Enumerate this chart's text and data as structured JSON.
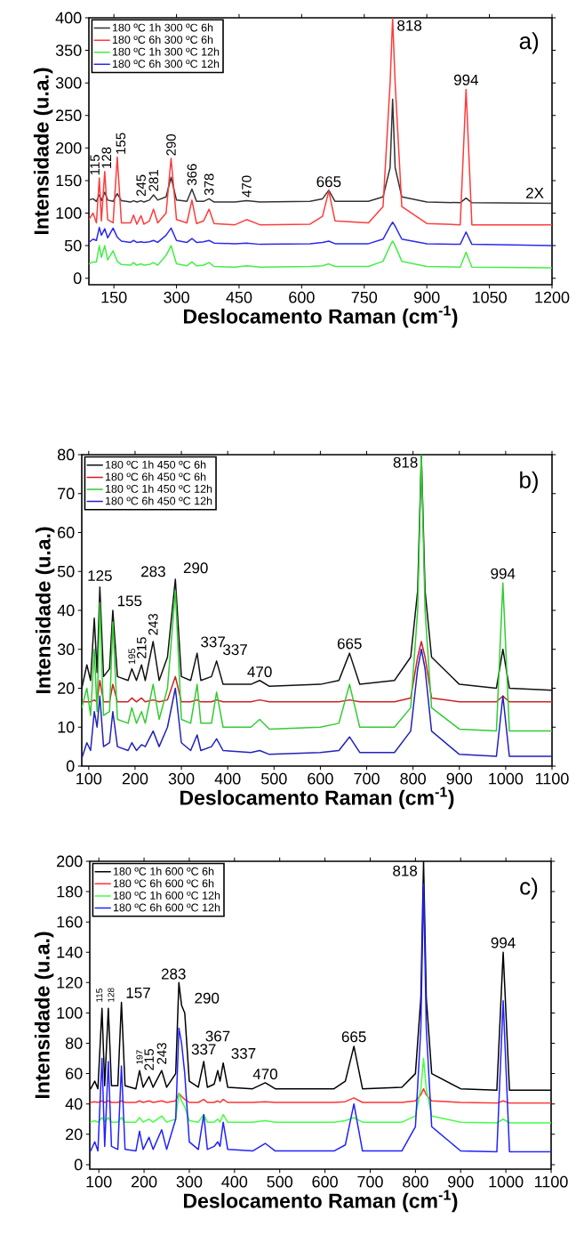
{
  "chart_data": [
    {
      "type": "line",
      "xlabel": "Deslocamento Raman (cm$^{-1}$)",
      "ylabel": "Intensidade (u.a.)",
      "xlim": [
        90,
        1200
      ],
      "ylim": [
        -10,
        400
      ],
      "xticks": [
        150,
        300,
        450,
        600,
        750,
        900,
        1050,
        1200
      ],
      "yticks": [
        0,
        50,
        100,
        150,
        200,
        250,
        300,
        350,
        400
      ],
      "legend": "top left",
      "x": [
        90,
        100,
        108,
        115,
        120,
        128,
        135,
        148,
        158,
        168,
        190,
        197,
        205,
        215,
        222,
        235,
        245,
        255,
        275,
        287,
        300,
        325,
        337,
        348,
        365,
        378,
        390,
        440,
        468,
        500,
        620,
        650,
        665,
        680,
        760,
        795,
        812,
        818,
        824,
        840,
        900,
        980,
        994,
        1008,
        1200
      ],
      "series": [
        {
          "name": "180 ºC 1h 300 ºC 6h",
          "color": "#333333",
          "values": [
            120,
            122,
            118,
            128,
            119,
            132,
            120,
            118,
            130,
            119,
            117,
            119,
            117,
            119,
            117,
            120,
            128,
            120,
            125,
            155,
            120,
            118,
            137,
            118,
            118,
            122,
            117,
            117,
            119,
            117,
            118,
            122,
            135,
            118,
            118,
            125,
            170,
            275,
            170,
            125,
            117,
            116,
            123,
            116,
            115
          ]
        },
        {
          "name": "180 ºC 6h 300 ºC 6h",
          "color": "#ff3b3b",
          "values": [
            90,
            100,
            85,
            154,
            88,
            164,
            90,
            85,
            186,
            85,
            85,
            97,
            83,
            96,
            83,
            88,
            106,
            85,
            100,
            184,
            90,
            85,
            120,
            84,
            88,
            106,
            84,
            82,
            90,
            82,
            83,
            95,
            134,
            88,
            85,
            110,
            300,
            400,
            300,
            110,
            84,
            82,
            290,
            82,
            82
          ]
        },
        {
          "name": "180 ºC 1h 300 ºC 12h",
          "color": "#44ee44",
          "values": [
            22,
            25,
            25,
            50,
            32,
            50,
            28,
            42,
            26,
            21,
            20,
            24,
            20,
            22,
            20,
            21,
            24,
            20,
            35,
            50,
            22,
            19,
            25,
            19,
            20,
            24,
            18,
            17,
            19,
            17,
            18,
            19,
            22,
            18,
            18,
            26,
            50,
            57,
            50,
            26,
            18,
            17,
            40,
            17,
            16
          ]
        },
        {
          "name": "180 ºC 6h 300 ºC 12h",
          "color": "#2a2aee",
          "values": [
            55,
            60,
            58,
            78,
            66,
            76,
            62,
            77,
            63,
            57,
            55,
            58,
            55,
            56,
            55,
            56,
            58,
            55,
            66,
            77,
            58,
            55,
            61,
            55,
            56,
            58,
            54,
            53,
            54,
            52,
            53,
            55,
            57,
            53,
            53,
            60,
            80,
            86,
            80,
            60,
            53,
            52,
            71,
            52,
            50
          ]
        }
      ],
      "annotations": [
        "a)",
        "2X",
        {
          "text": "115",
          "x": 115,
          "y": 154
        },
        {
          "text": "128",
          "x": 128,
          "y": 164
        },
        {
          "text": "155",
          "x": 158,
          "y": 186
        },
        {
          "text": "245",
          "x": 215,
          "y": 119
        },
        {
          "text": "281",
          "x": 245,
          "y": 128
        },
        {
          "text": "290",
          "x": 287,
          "y": 184
        },
        {
          "text": "366",
          "x": 337,
          "y": 137
        },
        {
          "text": "378",
          "x": 378,
          "y": 122
        },
        {
          "text": "470",
          "x": 468,
          "y": 119
        },
        {
          "text": "665",
          "x": 665,
          "y": 135
        },
        {
          "text": "818",
          "x": 818,
          "y": 400
        },
        {
          "text": "994",
          "x": 994,
          "y": 290
        }
      ]
    },
    {
      "type": "line",
      "xlabel": "Deslocamento Raman (cm$^{-1}$)",
      "ylabel": "Intensidade (u.a.)",
      "xlim": [
        85,
        1100
      ],
      "ylim": [
        0,
        80
      ],
      "xticks": [
        100,
        200,
        300,
        400,
        500,
        600,
        700,
        800,
        900,
        1000,
        1100
      ],
      "yticks": [
        0,
        10,
        20,
        30,
        40,
        50,
        60,
        70,
        80
      ],
      "legend": "top left",
      "x": [
        85,
        96,
        104,
        112,
        118,
        124,
        132,
        145,
        152,
        162,
        185,
        193,
        203,
        214,
        222,
        239,
        252,
        270,
        287,
        300,
        320,
        334,
        342,
        365,
        376,
        390,
        450,
        469,
        490,
        600,
        640,
        663,
        685,
        760,
        795,
        810,
        818,
        826,
        840,
        900,
        980,
        994,
        1008,
        1100
      ],
      "series": [
        {
          "name": "180 ºC 1h 450 ºC 6h",
          "color": "#111111",
          "values": [
            20,
            26,
            22,
            38,
            24,
            46,
            23,
            25,
            40,
            23,
            22,
            25,
            22,
            26,
            22,
            32,
            22,
            28,
            48,
            23,
            22,
            29,
            22,
            23,
            27,
            21,
            21,
            22,
            20.5,
            21,
            22,
            29,
            21,
            22,
            28,
            45,
            80,
            45,
            28,
            21,
            20,
            30,
            20,
            19.5
          ]
        },
        {
          "name": "180 ºC 6h 450 ºC 6h",
          "color": "#cc2222",
          "values": [
            16.5,
            16.5,
            16.5,
            17,
            16.5,
            22,
            16.5,
            16.5,
            21,
            16.5,
            16.5,
            17.5,
            16.5,
            17.5,
            16.5,
            17,
            16.5,
            17,
            23,
            16.5,
            16.5,
            17,
            16.5,
            16.5,
            17,
            16.5,
            16.5,
            17,
            16.5,
            16.5,
            16.5,
            17,
            16.5,
            16.5,
            17.5,
            28,
            32,
            28,
            17.5,
            16.5,
            16.5,
            18,
            16.5,
            16.5
          ]
        },
        {
          "name": "180 ºC 1h 450 ºC 12h",
          "color": "#33cc33",
          "values": [
            15,
            20,
            13,
            30,
            14,
            42,
            13,
            14,
            37,
            12,
            11,
            15,
            11,
            14,
            11,
            21,
            12,
            20,
            45,
            12,
            11,
            21,
            11,
            11,
            19,
            10,
            10,
            12,
            9.5,
            10,
            11,
            21,
            10,
            10,
            15,
            40,
            80,
            40,
            15,
            9.5,
            9,
            47,
            9,
            9
          ]
        },
        {
          "name": "180 ºC 6h 450 ºC 12h",
          "color": "#2222bb",
          "values": [
            2,
            6,
            4,
            14,
            10,
            18,
            5,
            6,
            14,
            5,
            4,
            6,
            4,
            5.5,
            5,
            9,
            5,
            10,
            20,
            6,
            4,
            8,
            4,
            5,
            7,
            4,
            3.5,
            4,
            3,
            3.5,
            4,
            7.5,
            3.5,
            3.5,
            9,
            25,
            30,
            25,
            9,
            3,
            2.5,
            18,
            2.5,
            2.5
          ]
        }
      ],
      "annotations": [
        "b)",
        {
          "text": "125",
          "x": 124,
          "y": 46
        },
        {
          "text": "155",
          "x": 152,
          "y": 40
        },
        {
          "text": "195",
          "x": 193,
          "y": 25
        },
        {
          "text": "215",
          "x": 214,
          "y": 26
        },
        {
          "text": "243",
          "x": 239,
          "y": 32
        },
        {
          "text": "283",
          "x": 287,
          "y": 48
        },
        {
          "text": "290",
          "x": 287,
          "y": 48
        },
        {
          "text": "337",
          "x": 334,
          "y": 29
        },
        {
          "text": "337",
          "x": 376,
          "y": 27
        },
        {
          "text": "470",
          "x": 469,
          "y": 22
        },
        {
          "text": "665",
          "x": 663,
          "y": 29
        },
        {
          "text": "818",
          "x": 818,
          "y": 80
        },
        {
          "text": "994",
          "x": 994,
          "y": 47
        }
      ]
    },
    {
      "type": "line",
      "xlabel": "Deslocamento Raman (cm$^{-1}$)",
      "ylabel": "Intensidade (u.a.)",
      "xlim": [
        80,
        1100
      ],
      "ylim": [
        -3,
        200
      ],
      "xticks": [
        100,
        200,
        300,
        400,
        500,
        600,
        700,
        800,
        900,
        1000,
        1100
      ],
      "yticks": [
        0,
        20,
        40,
        60,
        80,
        100,
        120,
        140,
        160,
        180,
        200
      ],
      "legend": "top left",
      "x": [
        82,
        91,
        98,
        107,
        113,
        121,
        128,
        142,
        150,
        158,
        182,
        190,
        198,
        211,
        220,
        239,
        250,
        270,
        277,
        283,
        290,
        300,
        320,
        332,
        340,
        355,
        363,
        368,
        375,
        385,
        440,
        468,
        490,
        620,
        645,
        664,
        683,
        770,
        800,
        812,
        818,
        824,
        836,
        900,
        980,
        994,
        1008,
        1100
      ],
      "series": [
        {
          "name": "180 ºC 1h 600 ºC 6h",
          "color": "#000000",
          "values": [
            50,
            55,
            50,
            103,
            52,
            103,
            52,
            52,
            107,
            52,
            50,
            62,
            51,
            58,
            51,
            62,
            51,
            60,
            120,
            105,
            100,
            55,
            51,
            68,
            51,
            53,
            62,
            55,
            67,
            51,
            50,
            54,
            50,
            50,
            55,
            78,
            50,
            51,
            60,
            110,
            200,
            110,
            60,
            50,
            49,
            140,
            49,
            49
          ]
        },
        {
          "name": "180 ºC 6h 600 ºC 6h",
          "color": "#ff3333",
          "values": [
            41,
            41.5,
            41,
            42,
            41,
            42,
            41,
            41,
            42,
            41,
            41,
            42,
            41,
            42,
            41,
            42,
            41,
            42,
            47,
            45,
            43,
            41,
            41,
            43,
            41,
            41,
            42,
            41,
            43,
            41,
            41,
            41.5,
            41,
            41,
            41.5,
            44,
            41,
            41,
            42,
            46,
            50,
            46,
            42,
            41,
            40.5,
            42,
            40.5,
            40.5
          ]
        },
        {
          "name": "180 ºC 1h 600 ºC 12h",
          "color": "#44ff44",
          "values": [
            28,
            29,
            28,
            31,
            28,
            31,
            28,
            28,
            31,
            28,
            28,
            31,
            28,
            30,
            28,
            32,
            28,
            30,
            47,
            42,
            38,
            29,
            28,
            33,
            28,
            28,
            30,
            28,
            33,
            28,
            28,
            29,
            28,
            28,
            29,
            31,
            28,
            28,
            32,
            50,
            70,
            50,
            32,
            28,
            27.5,
            30,
            27.5,
            27.5
          ]
        },
        {
          "name": "180 ºC 6h 600 ºC 12h",
          "color": "#2222ff",
          "values": [
            9,
            15,
            9,
            70,
            12,
            68,
            12,
            10,
            65,
            10,
            9,
            22,
            10,
            18,
            10,
            23,
            10,
            30,
            90,
            80,
            60,
            15,
            10,
            33,
            10,
            12,
            15,
            12,
            28,
            10,
            9,
            14,
            9,
            9,
            13,
            40,
            9,
            9,
            25,
            90,
            185,
            90,
            25,
            9,
            8.5,
            108,
            8.5,
            8.5
          ]
        }
      ],
      "annotations": [
        "c)",
        {
          "text": "115",
          "x": 107,
          "y": 103
        },
        {
          "text": "128",
          "x": 121,
          "y": 103
        },
        {
          "text": "157",
          "x": 150,
          "y": 107
        },
        {
          "text": "197",
          "x": 190,
          "y": 62
        },
        {
          "text": "215",
          "x": 211,
          "y": 58
        },
        {
          "text": "243",
          "x": 239,
          "y": 62
        },
        {
          "text": "283",
          "x": 277,
          "y": 120
        },
        {
          "text": "290",
          "x": 290,
          "y": 100
        },
        {
          "text": "337",
          "x": 332,
          "y": 68
        },
        {
          "text": "367",
          "x": 363,
          "y": 62
        },
        {
          "text": "337",
          "x": 375,
          "y": 67
        },
        {
          "text": "470",
          "x": 468,
          "y": 54
        },
        {
          "text": "665",
          "x": 664,
          "y": 78
        },
        {
          "text": "818",
          "x": 818,
          "y": 200
        },
        {
          "text": "994",
          "x": 994,
          "y": 140
        }
      ]
    }
  ]
}
